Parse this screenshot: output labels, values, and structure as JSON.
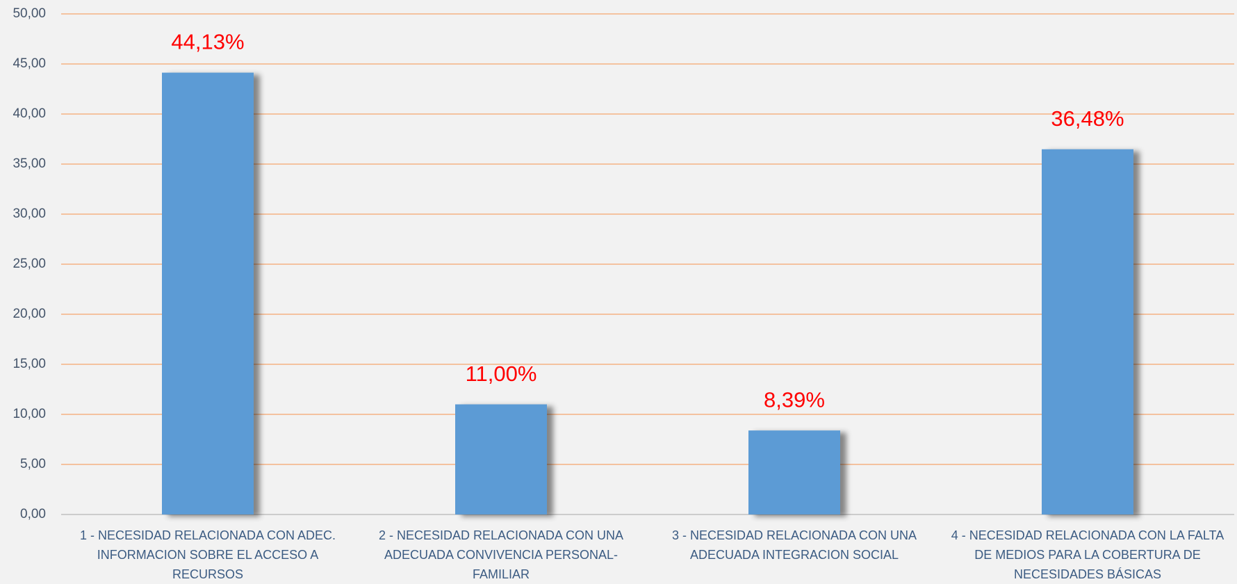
{
  "chart_data": {
    "type": "bar",
    "categories": [
      "1 - NECESIDAD RELACIONADA CON ADEC. INFORMACION SOBRE EL ACCESO A RECURSOS",
      "2 - NECESIDAD RELACIONADA CON UNA ADECUADA CONVIVENCIA PERSONAL-FAMILIAR",
      "3 - NECESIDAD RELACIONADA CON UNA ADECUADA INTEGRACION SOCIAL",
      "4 - NECESIDAD RELACIONADA CON LA FALTA DE MEDIOS PARA LA COBERTURA DE NECESIDADES BÁSICAS"
    ],
    "values": [
      44.13,
      11.0,
      8.39,
      36.48
    ],
    "value_labels": [
      "44,13%",
      "11,00%",
      "8,39%",
      "36,48%"
    ],
    "color": "#5b9bd5",
    "ylim": [
      0,
      50
    ],
    "yticks": [
      {
        "value": 0,
        "label": "0,00"
      },
      {
        "value": 5,
        "label": "5,00"
      },
      {
        "value": 10,
        "label": "10,00"
      },
      {
        "value": 15,
        "label": "15,00"
      },
      {
        "value": 20,
        "label": "20,00"
      },
      {
        "value": 25,
        "label": "25,00"
      },
      {
        "value": 30,
        "label": "30,00"
      },
      {
        "value": 35,
        "label": "35,00"
      },
      {
        "value": 40,
        "label": "40,00"
      },
      {
        "value": 45,
        "label": "45,00"
      },
      {
        "value": 50,
        "label": "50,00"
      }
    ],
    "grid": true,
    "grid_color": "#f4b183"
  }
}
